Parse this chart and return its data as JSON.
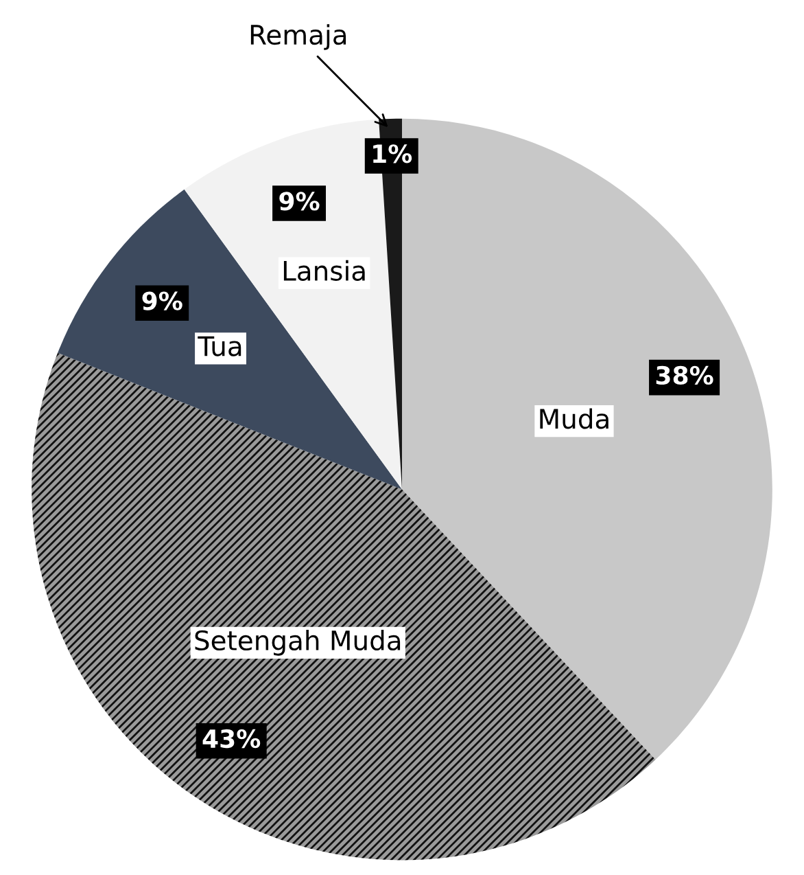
{
  "chart_data": {
    "type": "pie",
    "categories": [
      "Muda",
      "Setengah Muda",
      "Tua",
      "Lansia",
      "Remaja"
    ],
    "values": [
      38,
      43,
      9,
      9,
      1
    ],
    "colors": [
      "#c8c8c8",
      "#9a9a9a",
      "#3d4a5e",
      "#f2f2f2",
      "#1a1a1a"
    ],
    "value_labels": [
      "38%",
      "43%",
      "9%",
      "9%",
      "1%"
    ],
    "legend": false
  }
}
